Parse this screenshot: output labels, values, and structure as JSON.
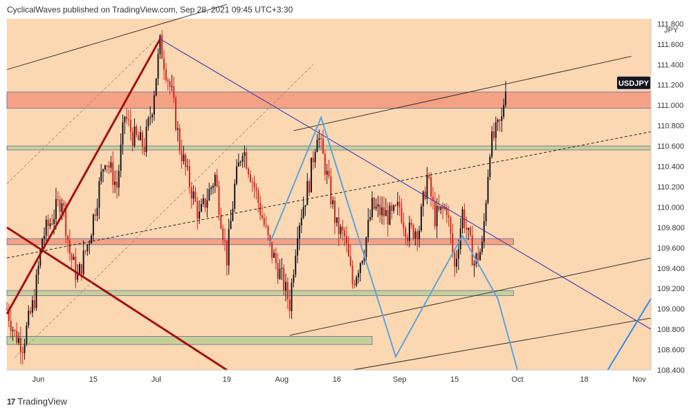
{
  "header": {
    "text": "CyclicalWaves published on TradingView.com, Sep 28, 2021 09:45 UTC+3:30"
  },
  "footer": {
    "brand": "TradingView",
    "logo_icon": "tradingview-logo-icon"
  },
  "colors": {
    "background": "#fbd7b2",
    "candle_up": "#131722",
    "candle_down": "#d9241c",
    "resistance_zone": "#f4a184",
    "support_zone": "#c8cf96",
    "zone_border": "#5a6fa8",
    "downtrend_line": "#3a3ab8",
    "thick_trend": "#a51010",
    "wave_line": "#5aa5dc",
    "wave_line_bright": "#2a8ff0",
    "channel_line": "#222222"
  },
  "chart_data": {
    "type": "candlestick",
    "symbol": "USDJPY",
    "currency": "JPY",
    "y_axis": {
      "range": [
        108.4,
        111.85
      ],
      "ticks": [
        "108.400",
        "108.600",
        "108.800",
        "109.000",
        "109.200",
        "109.400",
        "109.600",
        "109.800",
        "110.000",
        "110.200",
        "110.400",
        "110.600",
        "110.800",
        "111.000",
        "111.200",
        "111.400",
        "111.600",
        "111.800"
      ]
    },
    "x_axis": {
      "range": [
        "2021-05-24",
        "2021-11-04"
      ],
      "ticks": [
        {
          "label": "Jun",
          "date": "2021-06-01"
        },
        {
          "label": "15",
          "date": "2021-06-15"
        },
        {
          "label": "Jul",
          "date": "2021-07-01"
        },
        {
          "label": "19",
          "date": "2021-07-19"
        },
        {
          "label": "Aug",
          "date": "2021-08-02"
        },
        {
          "label": "16",
          "date": "2021-08-16"
        },
        {
          "label": "Sep",
          "date": "2021-09-01"
        },
        {
          "label": "15",
          "date": "2021-09-15"
        },
        {
          "label": "Oct",
          "date": "2021-10-01"
        },
        {
          "label": "18",
          "date": "2021-10-18"
        },
        {
          "label": "Nov",
          "date": "2021-11-01"
        }
      ]
    },
    "last_price_label": "USDJPY",
    "last_price": 111.22,
    "price_path": [
      [
        "2021-05-24",
        109.0
      ],
      [
        "2021-05-26",
        108.75
      ],
      [
        "2021-05-28",
        108.65
      ],
      [
        "2021-05-31",
        109.1
      ],
      [
        "2021-06-02",
        109.7
      ],
      [
        "2021-06-04",
        109.85
      ],
      [
        "2021-06-07",
        110.1
      ],
      [
        "2021-06-09",
        109.55
      ],
      [
        "2021-06-11",
        109.3
      ],
      [
        "2021-06-14",
        109.7
      ],
      [
        "2021-06-16",
        110.1
      ],
      [
        "2021-06-18",
        110.5
      ],
      [
        "2021-06-21",
        110.2
      ],
      [
        "2021-06-23",
        110.9
      ],
      [
        "2021-06-25",
        110.7
      ],
      [
        "2021-06-28",
        110.6
      ],
      [
        "2021-06-30",
        111.0
      ],
      [
        "2021-07-02",
        111.6
      ],
      [
        "2021-07-05",
        111.1
      ],
      [
        "2021-07-07",
        110.6
      ],
      [
        "2021-07-09",
        110.3
      ],
      [
        "2021-07-12",
        109.9
      ],
      [
        "2021-07-14",
        110.1
      ],
      [
        "2021-07-16",
        110.3
      ],
      [
        "2021-07-19",
        109.5
      ],
      [
        "2021-07-21",
        110.2
      ],
      [
        "2021-07-23",
        110.6
      ],
      [
        "2021-07-26",
        110.2
      ],
      [
        "2021-07-28",
        109.9
      ],
      [
        "2021-07-30",
        109.6
      ],
      [
        "2021-08-02",
        109.3
      ],
      [
        "2021-08-04",
        109.05
      ],
      [
        "2021-08-06",
        109.8
      ],
      [
        "2021-08-09",
        110.25
      ],
      [
        "2021-08-11",
        110.75
      ],
      [
        "2021-08-13",
        110.4
      ],
      [
        "2021-08-16",
        109.8
      ],
      [
        "2021-08-18",
        109.7
      ],
      [
        "2021-08-20",
        109.25
      ],
      [
        "2021-08-23",
        109.6
      ],
      [
        "2021-08-25",
        110.0
      ],
      [
        "2021-08-27",
        109.95
      ],
      [
        "2021-08-30",
        109.9
      ],
      [
        "2021-09-01",
        110.0
      ],
      [
        "2021-09-03",
        109.75
      ],
      [
        "2021-09-06",
        109.8
      ],
      [
        "2021-09-08",
        110.3
      ],
      [
        "2021-09-10",
        109.9
      ],
      [
        "2021-09-13",
        110.0
      ],
      [
        "2021-09-15",
        109.4
      ],
      [
        "2021-09-17",
        109.95
      ],
      [
        "2021-09-20",
        109.45
      ],
      [
        "2021-09-22",
        109.6
      ],
      [
        "2021-09-24",
        110.6
      ],
      [
        "2021-09-27",
        110.85
      ],
      [
        "2021-09-28",
        111.22
      ]
    ],
    "resistance_zones": [
      {
        "from": 110.97,
        "to": 111.13,
        "start": "2021-05-24",
        "end": "2021-11-04"
      },
      {
        "from": 109.63,
        "to": 109.69,
        "start": "2021-05-24",
        "end": "2021-09-30"
      }
    ],
    "support_zones": [
      {
        "from": 110.56,
        "to": 110.6,
        "start": "2021-05-24",
        "end": "2021-11-04"
      },
      {
        "from": 109.13,
        "to": 109.18,
        "start": "2021-05-24",
        "end": "2021-09-30"
      },
      {
        "from": 108.65,
        "to": 108.73,
        "start": "2021-05-24",
        "end": "2021-08-25"
      }
    ],
    "trend_lines": [
      {
        "style": "thick",
        "points": [
          [
            "2021-05-24",
            108.95
          ],
          [
            "2021-07-02",
            111.65
          ]
        ]
      },
      {
        "style": "thick",
        "points": [
          [
            "2021-05-24",
            109.8
          ],
          [
            "2021-07-19",
            108.4
          ]
        ]
      },
      {
        "style": "downtrend",
        "points": [
          [
            "2021-07-02",
            111.65
          ],
          [
            "2021-11-04",
            108.8
          ]
        ]
      },
      {
        "style": "channel",
        "points": [
          [
            "2021-05-24",
            111.35
          ],
          [
            "2021-07-19",
            111.99
          ]
        ]
      },
      {
        "style": "channel",
        "points": [
          [
            "2021-08-05",
            110.75
          ],
          [
            "2021-10-30",
            111.48
          ]
        ]
      },
      {
        "style": "channel",
        "points": [
          [
            "2021-08-04",
            108.74
          ],
          [
            "2021-11-04",
            109.5
          ]
        ]
      },
      {
        "style": "channel",
        "points": [
          [
            "2021-08-20",
            108.4
          ],
          [
            "2021-11-04",
            108.91
          ]
        ]
      },
      {
        "style": "dashed",
        "points": [
          [
            "2021-05-24",
            109.5
          ],
          [
            "2021-11-04",
            110.74
          ]
        ]
      },
      {
        "style": "dashed-light",
        "points": [
          [
            "2021-05-26",
            108.52
          ],
          [
            "2021-08-10",
            111.4
          ]
        ]
      },
      {
        "style": "dashed-light",
        "points": [
          [
            "2021-05-24",
            110.23
          ],
          [
            "2021-07-01",
            111.65
          ]
        ]
      }
    ],
    "wave_path": [
      [
        "2021-07-30",
        109.65
      ],
      [
        "2021-08-12",
        110.88
      ],
      [
        "2021-08-31",
        108.53
      ],
      [
        "2021-09-17",
        109.72
      ],
      [
        "2021-09-26",
        109.1
      ],
      [
        "2021-10-01",
        108.4
      ]
    ],
    "wave_path_2": [
      [
        "2021-10-24",
        108.4
      ],
      [
        "2021-11-04",
        109.1
      ]
    ]
  }
}
